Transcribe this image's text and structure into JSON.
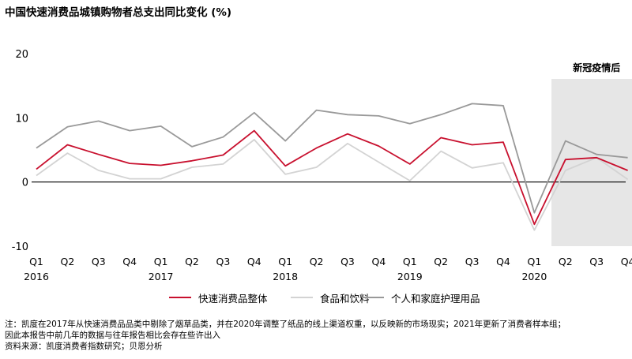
{
  "chart_data": {
    "type": "line",
    "title": "中国快速消费品城镇购物者总支出同比变化 (%)",
    "categories": [
      "Q1",
      "Q2",
      "Q3",
      "Q4",
      "Q1",
      "Q2",
      "Q3",
      "Q4",
      "Q1",
      "Q2",
      "Q3",
      "Q4",
      "Q1",
      "Q2",
      "Q3",
      "Q4",
      "Q1",
      "Q2",
      "Q3",
      "Q4"
    ],
    "years": [
      {
        "index": 0,
        "label": "2016"
      },
      {
        "index": 4,
        "label": "2017"
      },
      {
        "index": 8,
        "label": "2018"
      },
      {
        "index": 12,
        "label": "2019"
      },
      {
        "index": 16,
        "label": "2020"
      }
    ],
    "ylim": [
      -10,
      20
    ],
    "yticks": [
      -10,
      0,
      10,
      20
    ],
    "xlabel": "",
    "ylabel": "",
    "grid": false,
    "legend_position": "bottom",
    "highlight": {
      "start_index": 17,
      "end_index": 19,
      "label": "新冠疫情后",
      "color": "#e6e6e6"
    },
    "series": [
      {
        "name": "快速消费品整体",
        "color": "#c8102e",
        "values": [
          2.0,
          5.8,
          4.3,
          2.9,
          2.6,
          3.3,
          4.2,
          8.0,
          2.5,
          5.3,
          7.5,
          5.6,
          2.8,
          6.9,
          5.8,
          6.2,
          -6.6,
          3.5,
          3.8,
          1.8
        ]
      },
      {
        "name": "食品和饮料",
        "color": "#d3d3d3",
        "values": [
          1.0,
          4.5,
          1.8,
          0.5,
          0.5,
          2.3,
          2.8,
          6.6,
          1.2,
          2.3,
          6.0,
          3.1,
          0.2,
          4.8,
          2.2,
          3.0,
          -7.5,
          1.8,
          3.8,
          0.4
        ]
      },
      {
        "name": "个人和家庭护理用品",
        "color": "#999999",
        "values": [
          5.3,
          8.6,
          9.5,
          8.0,
          8.7,
          5.5,
          7.0,
          10.8,
          6.4,
          11.2,
          10.5,
          10.3,
          9.1,
          10.5,
          12.2,
          11.9,
          -4.8,
          6.4,
          4.3,
          3.8
        ]
      }
    ]
  },
  "notes": [
    "注：凯度在2017年从快速消费品品类中剔除了烟草品类，并在2020年调整了纸品的线上渠道权重，以反映新的市场现实；2021年更新了消费者样本组；",
    "因此本报告中前几年的数据与往年报告相比会存在些许出入",
    "资料来源：凯度消费者指数研究；贝恩分析"
  ]
}
